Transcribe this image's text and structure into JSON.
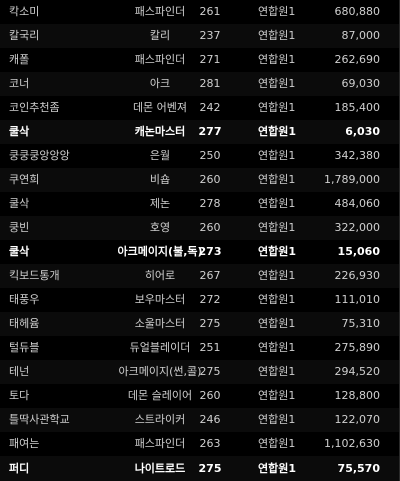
{
  "ranking": {
    "rows": [
      {
        "name": "칵소미",
        "job": "패스파인더",
        "level": "261",
        "guild": "연합원1",
        "score": "680,880",
        "highlight": false
      },
      {
        "name": "칼국리",
        "job": "칼리",
        "level": "237",
        "guild": "연합원1",
        "score": "87,000",
        "highlight": false
      },
      {
        "name": "캐폴",
        "job": "패스파인더",
        "level": "271",
        "guild": "연합원1",
        "score": "262,690",
        "highlight": false
      },
      {
        "name": "코너",
        "job": "아크",
        "level": "281",
        "guild": "연합원1",
        "score": "69,030",
        "highlight": false
      },
      {
        "name": "코인추천좀",
        "job": "데몬 어벤져",
        "level": "242",
        "guild": "연합원1",
        "score": "185,400",
        "highlight": false
      },
      {
        "name": "쿨삭",
        "job": "캐논마스터",
        "level": "277",
        "guild": "연합원1",
        "score": "6,030",
        "highlight": true
      },
      {
        "name": "쿵쿵쿵앙앙앙",
        "job": "은월",
        "level": "250",
        "guild": "연합원1",
        "score": "342,380",
        "highlight": false
      },
      {
        "name": "쿠연희",
        "job": "비숍",
        "level": "260",
        "guild": "연합원1",
        "score": "1,789,000",
        "highlight": false
      },
      {
        "name": "쿨삭",
        "job": "제논",
        "level": "278",
        "guild": "연합원1",
        "score": "484,060",
        "highlight": false
      },
      {
        "name": "쿵빈",
        "job": "호영",
        "level": "260",
        "guild": "연합원1",
        "score": "322,000",
        "highlight": false
      },
      {
        "name": "쿨삭",
        "job": "아크메이지(불,독)",
        "level": "273",
        "guild": "연합원1",
        "score": "15,060",
        "highlight": true
      },
      {
        "name": "킥보드통개",
        "job": "히어로",
        "level": "267",
        "guild": "연합원1",
        "score": "226,930",
        "highlight": false
      },
      {
        "name": "태풍우",
        "job": "보우마스터",
        "level": "272",
        "guild": "연합원1",
        "score": "111,010",
        "highlight": false
      },
      {
        "name": "태헤윰",
        "job": "소울마스터",
        "level": "275",
        "guild": "연합원1",
        "score": "75,310",
        "highlight": false
      },
      {
        "name": "털듀블",
        "job": "듀얼블레이더",
        "level": "251",
        "guild": "연합원1",
        "score": "275,890",
        "highlight": false
      },
      {
        "name": "테넌",
        "job": "아크메이지(썬,콜)",
        "level": "275",
        "guild": "연합원1",
        "score": "294,520",
        "highlight": false
      },
      {
        "name": "토다",
        "job": "데몬 슬레이어",
        "level": "260",
        "guild": "연합원1",
        "score": "128,800",
        "highlight": false
      },
      {
        "name": "틀딱사관학교",
        "job": "스트라이커",
        "level": "246",
        "guild": "연합원1",
        "score": "122,070",
        "highlight": false
      },
      {
        "name": "패여는",
        "job": "패스파인더",
        "level": "263",
        "guild": "연합원1",
        "score": "1,102,630",
        "highlight": false
      },
      {
        "name": "퍼디",
        "job": "나이트로드",
        "level": "275",
        "guild": "연합원1",
        "score": "75,570",
        "highlight": true
      }
    ]
  },
  "colors": {
    "background": "#000000",
    "text": "#cfcfcf",
    "highlight_text": "#ffffff"
  }
}
